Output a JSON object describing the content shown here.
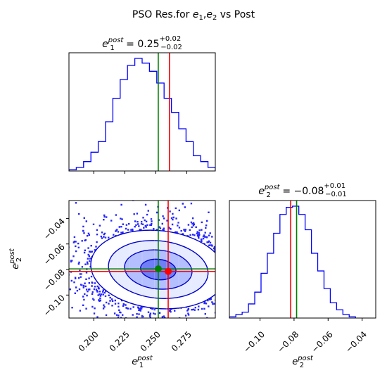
{
  "figure": {
    "title_prefix": "PSO Res.for ",
    "title_suffix": " vs Post"
  },
  "params": [
    {
      "sym": "e",
      "sub": "1",
      "sup": "post",
      "value": "0.25",
      "plus": "+0.02",
      "minus": "−0.02"
    },
    {
      "sym": "e",
      "sub": "2",
      "sup": "post",
      "value": "−0.08",
      "plus": "+0.01",
      "minus": "−0.01"
    }
  ],
  "colors": {
    "samples": "#0000ff",
    "truth": "#ff0000",
    "estimate": "#008000"
  },
  "chart_data": [
    {
      "type": "histogram",
      "panel": "e1-marginal",
      "xlim": [
        0.18,
        0.298
      ],
      "bin_edges": [
        0.18,
        0.1859,
        0.1918,
        0.1977,
        0.2036,
        0.2095,
        0.2154,
        0.2213,
        0.2272,
        0.2331,
        0.239,
        0.2449,
        0.2508,
        0.2567,
        0.2626,
        0.2685,
        0.2744,
        0.2803,
        0.2862,
        0.2921,
        0.298
      ],
      "counts": [
        1,
        3,
        8,
        16,
        25,
        42,
        62,
        78,
        90,
        96,
        92,
        85,
        75,
        62,
        50,
        36,
        25,
        13,
        8,
        3
      ],
      "truth_x": 0.261,
      "estimate_x": 0.252,
      "xticks": [
        0.2,
        0.225,
        0.25,
        0.275
      ]
    },
    {
      "type": "scatter-contour",
      "panel": "e1-e2-joint",
      "xlabel_sym": "e",
      "xlabel_sub": "1",
      "xlabel_sup": "post",
      "ylabel_sym": "e",
      "ylabel_sub": "2",
      "ylabel_sup": "post",
      "xlim": [
        0.18,
        0.298
      ],
      "ylim": [
        -0.118,
        -0.026
      ],
      "xticks": [
        0.2,
        0.225,
        0.25,
        0.275
      ],
      "xtick_labels": [
        "0.200",
        "0.225",
        "0.250",
        "0.275"
      ],
      "yticks": [
        -0.04,
        -0.06,
        -0.08,
        -0.1
      ],
      "ytick_labels": [
        "−0.04",
        "−0.06",
        "−0.08",
        "−0.10"
      ],
      "center": [
        0.252,
        -0.08
      ],
      "truth": [
        0.26,
        -0.0815
      ],
      "estimate": [
        0.252,
        -0.0795
      ]
    },
    {
      "type": "histogram",
      "panel": "e2-marginal",
      "xlabel_sym": "e",
      "xlabel_sub": "2",
      "xlabel_sup": "post",
      "xlim": [
        -0.118,
        -0.032
      ],
      "bin_edges": [
        -0.118,
        -0.1142,
        -0.1105,
        -0.1068,
        -0.1031,
        -0.0994,
        -0.0957,
        -0.092,
        -0.0883,
        -0.0846,
        -0.0809,
        -0.0772,
        -0.0735,
        -0.0698,
        -0.0661,
        -0.0624,
        -0.0587,
        -0.055,
        -0.0513,
        -0.0476,
        -0.0439
      ],
      "counts": [
        1,
        3,
        5,
        12,
        22,
        38,
        55,
        72,
        88,
        94,
        95,
        88,
        75,
        55,
        40,
        25,
        13,
        7,
        3,
        1
      ],
      "truth_x": -0.082,
      "estimate_x": -0.0785,
      "xticks": [
        -0.1,
        -0.08,
        -0.06,
        -0.04
      ],
      "xtick_labels": [
        "−0.10",
        "−0.08",
        "−0.06",
        "−0.04"
      ]
    }
  ]
}
